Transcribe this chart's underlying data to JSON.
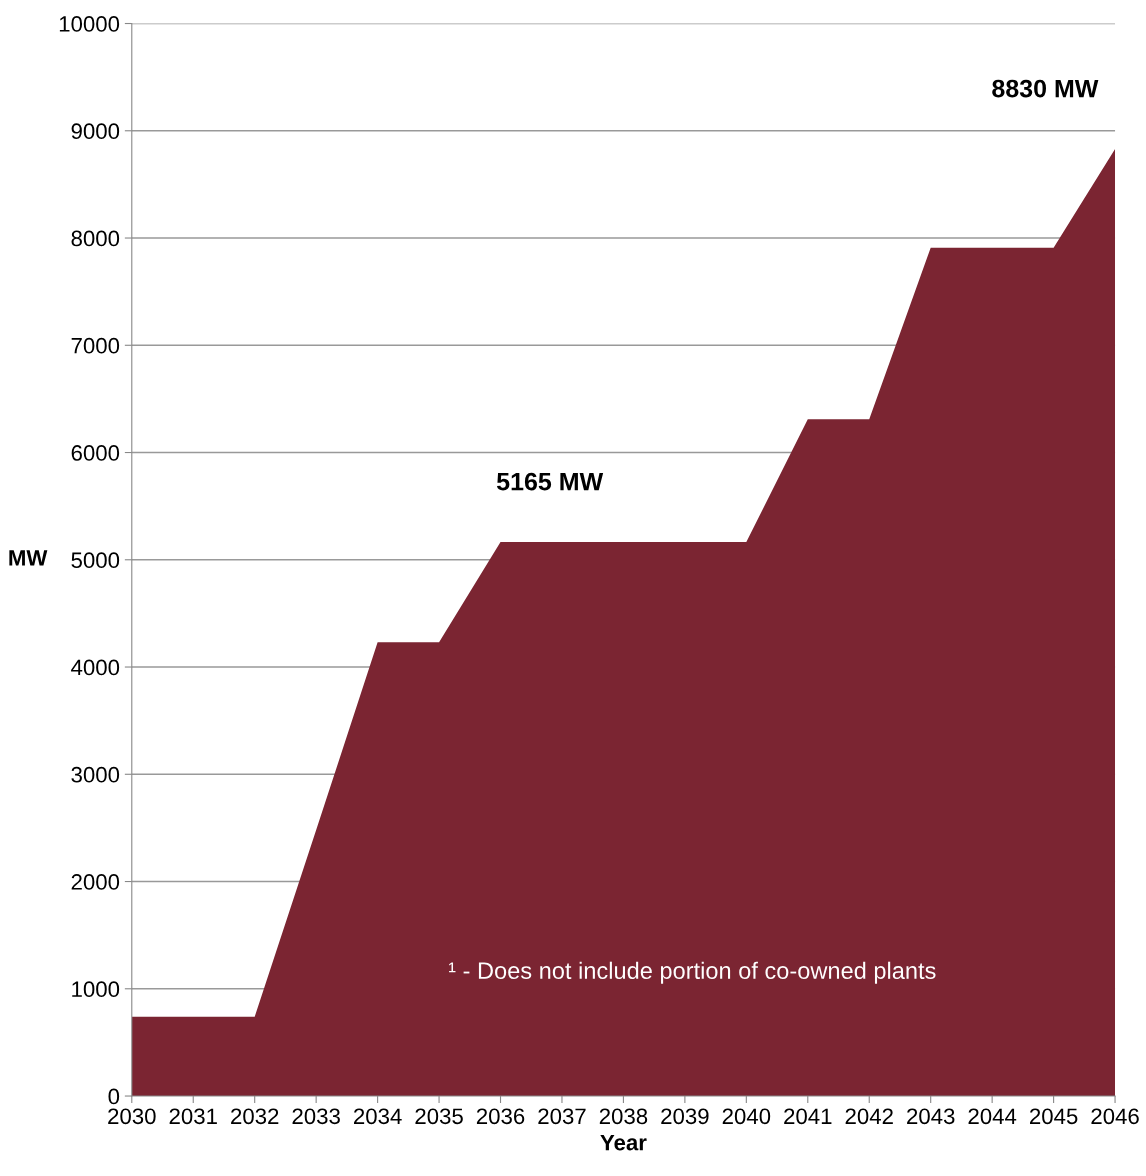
{
  "chart_data": {
    "type": "area",
    "xlabel": "Year",
    "ylabel": "MW",
    "x": [
      2030,
      2031,
      2032,
      2033,
      2034,
      2035,
      2036,
      2037,
      2038,
      2039,
      2040,
      2041,
      2042,
      2043,
      2044,
      2045,
      2046
    ],
    "series": [
      {
        "color": "#7b2532",
        "values": [
          740,
          740,
          740,
          2480,
          4230,
          4230,
          5165,
          5165,
          5165,
          5165,
          5165,
          6310,
          6310,
          7910,
          7910,
          7910,
          8830
        ]
      }
    ],
    "xlim": [
      2030,
      2046
    ],
    "xticks": [
      2030,
      2031,
      2032,
      2033,
      2034,
      2035,
      2036,
      2037,
      2038,
      2039,
      2040,
      2041,
      2042,
      2043,
      2044,
      2045,
      2046
    ],
    "ylim": [
      0,
      10000
    ],
    "yticks": [
      0,
      1000,
      2000,
      3000,
      4000,
      5000,
      6000,
      7000,
      8000,
      9000,
      10000
    ],
    "grid": "y",
    "annotations": [
      {
        "text": "5165 MW",
        "x": 2036.8,
        "y": 5165
      },
      {
        "text": "8830 MW",
        "x": 2046,
        "y": 8830
      },
      "¹ - Does not include portion of co-owned plants"
    ]
  }
}
